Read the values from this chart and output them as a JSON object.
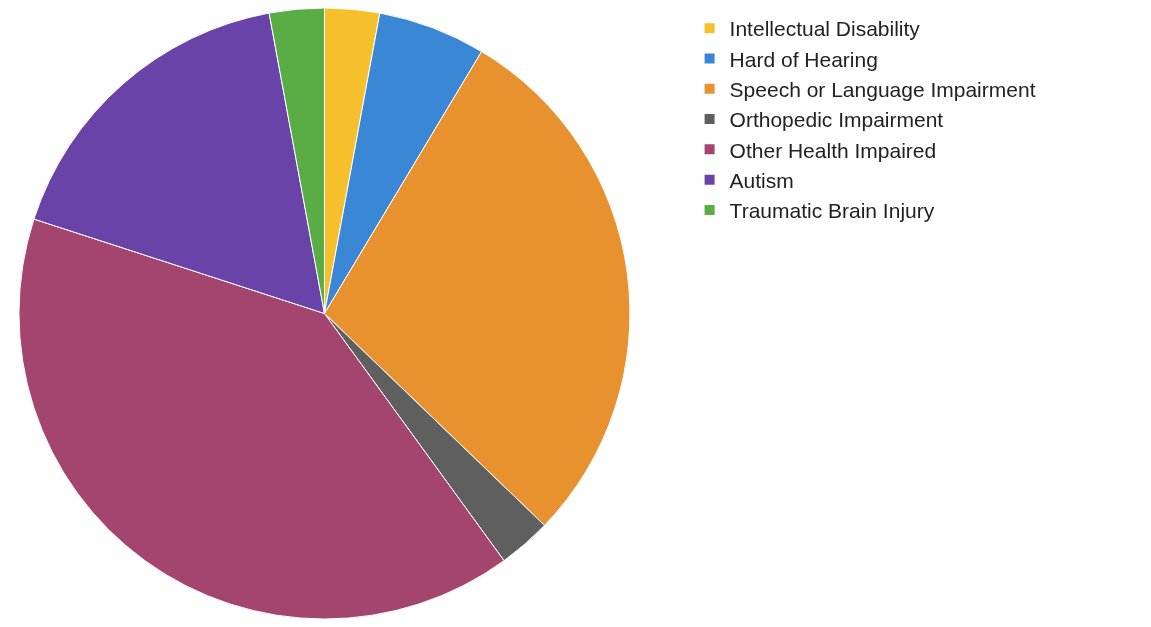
{
  "chart_data": {
    "type": "pie",
    "categories": [
      "Intellectual Disability",
      "Hard of Hearing",
      "Speech or Language Impairment",
      "Orthopedic Impairment",
      "Other Health Impaired",
      "Autism",
      "Traumatic Brain Injury"
    ],
    "values": [
      2.9,
      5.7,
      28.6,
      2.8,
      40,
      17.1,
      2.9
    ],
    "colors": [
      "#f5c02c",
      "#3a87d6",
      "#e8912f",
      "#5f5f5f",
      "#a3456f",
      "#6a43a8",
      "#5aac44"
    ],
    "legend": "top right"
  }
}
